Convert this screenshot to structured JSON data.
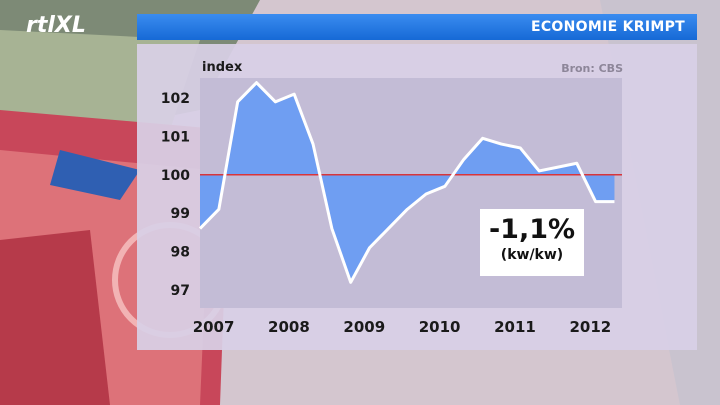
{
  "header": {
    "logo_text": "rtlXL",
    "title": "ECONOMIE KRIMPT"
  },
  "source": "Bron: CBS",
  "callout": {
    "value": "-1,1%",
    "subtitle": "(kw/kw)"
  },
  "colors": {
    "title_bar": "#1f74e0",
    "area_fill": "#6f9ef2",
    "line": "#ffffff",
    "reference_line": "#d8353a"
  },
  "chart_data": {
    "type": "area",
    "title": "ECONOMIE KRIMPT",
    "ylabel": "index",
    "xlabel": "",
    "ylim": [
      96.6,
      103.1
    ],
    "xlim": [
      2006.9,
      2012.5
    ],
    "y_ticks": [
      97,
      98,
      99,
      100,
      101,
      102
    ],
    "x_ticks": [
      2007,
      2008,
      2009,
      2010,
      2011,
      2012
    ],
    "reference_line": 100,
    "grid": false,
    "series": [
      {
        "name": "",
        "x": [
          2006.9,
          2007.15,
          2007.4,
          2007.65,
          2007.9,
          2008.15,
          2008.4,
          2008.65,
          2008.9,
          2009.15,
          2009.4,
          2009.65,
          2009.9,
          2010.15,
          2010.4,
          2010.65,
          2010.9,
          2011.15,
          2011.4,
          2011.65,
          2011.9,
          2012.15,
          2012.4
        ],
        "y": [
          98.6,
          99.1,
          101.9,
          102.4,
          101.9,
          102.1,
          100.8,
          98.6,
          97.2,
          98.1,
          98.6,
          99.1,
          99.5,
          99.7,
          100.4,
          100.95,
          100.8,
          100.7,
          100.1,
          100.2,
          100.3,
          99.3,
          99.3
        ]
      }
    ]
  }
}
